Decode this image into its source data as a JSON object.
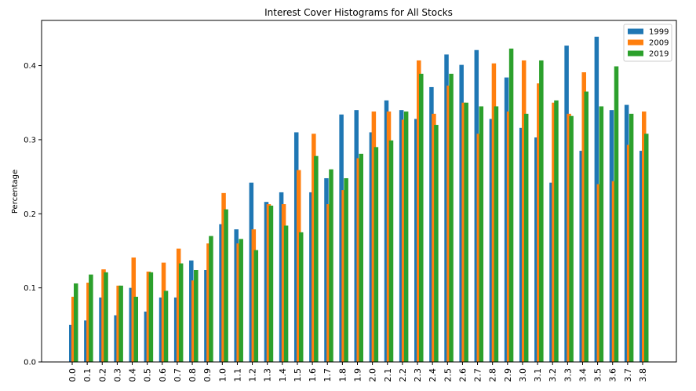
{
  "chart_data": {
    "type": "bar",
    "title": "Interest Cover Histograms for All Stocks",
    "y_label": "Percentage",
    "categories": [
      "0.0",
      "0.1",
      "0.2",
      "0.3",
      "0.4",
      "0.5",
      "0.6",
      "0.7",
      "0.8",
      "0.9",
      "1.0",
      "1.1",
      "1.2",
      "1.3",
      "1.4",
      "1.5",
      "1.6",
      "1.7",
      "1.8",
      "1.9",
      "2.0",
      "2.1",
      "2.2",
      "2.3",
      "2.4",
      "2.5",
      "2.6",
      "2.7",
      "2.8",
      "2.9",
      "3.0",
      "3.1",
      "3.2",
      "3.3",
      "3.4",
      "3.5",
      "3.6",
      "3.7",
      "3.8"
    ],
    "series": [
      {
        "name": "1999",
        "color": "#1f77b4",
        "values": [
          0.05,
          0.056,
          0.087,
          0.063,
          0.1,
          0.068,
          0.087,
          0.087,
          0.137,
          0.124,
          0.186,
          0.179,
          0.242,
          0.216,
          0.229,
          0.31,
          0.229,
          0.248,
          0.334,
          0.34,
          0.31,
          0.353,
          0.34,
          0.328,
          0.371,
          0.415,
          0.401,
          0.421,
          0.328,
          0.384,
          0.316,
          0.303,
          0.242,
          0.427,
          0.285,
          0.439,
          0.34,
          0.347,
          0.285
        ]
      },
      {
        "name": "2009",
        "color": "#ff7f0e",
        "values": [
          0.088,
          0.107,
          0.125,
          0.103,
          0.141,
          0.122,
          0.134,
          0.153,
          0.11,
          0.16,
          0.228,
          0.16,
          0.179,
          0.213,
          0.213,
          0.259,
          0.308,
          0.213,
          0.232,
          0.275,
          0.338,
          0.338,
          0.327,
          0.407,
          0.335,
          0.373,
          0.35,
          0.308,
          0.403,
          0.338,
          0.407,
          0.376,
          0.35,
          0.335,
          0.391,
          0.24,
          0.244,
          0.293,
          0.338
        ]
      },
      {
        "name": "2019",
        "color": "#2ca02c",
        "values": [
          0.106,
          0.118,
          0.121,
          0.103,
          0.088,
          0.121,
          0.096,
          0.133,
          0.124,
          0.17,
          0.206,
          0.166,
          0.151,
          0.211,
          0.184,
          0.175,
          0.278,
          0.26,
          0.248,
          0.281,
          0.29,
          0.299,
          0.338,
          0.389,
          0.32,
          0.389,
          0.35,
          0.345,
          0.345,
          0.423,
          0.335,
          0.407,
          0.353,
          0.332,
          0.365,
          0.345,
          0.399,
          0.335,
          0.308
        ]
      }
    ],
    "ylim": [
      0,
      0.461
    ],
    "yticks": [
      {
        "value": 0,
        "label": "0.0"
      },
      0.1,
      0.2,
      0.3,
      0.4
    ],
    "legend": "upper right"
  }
}
